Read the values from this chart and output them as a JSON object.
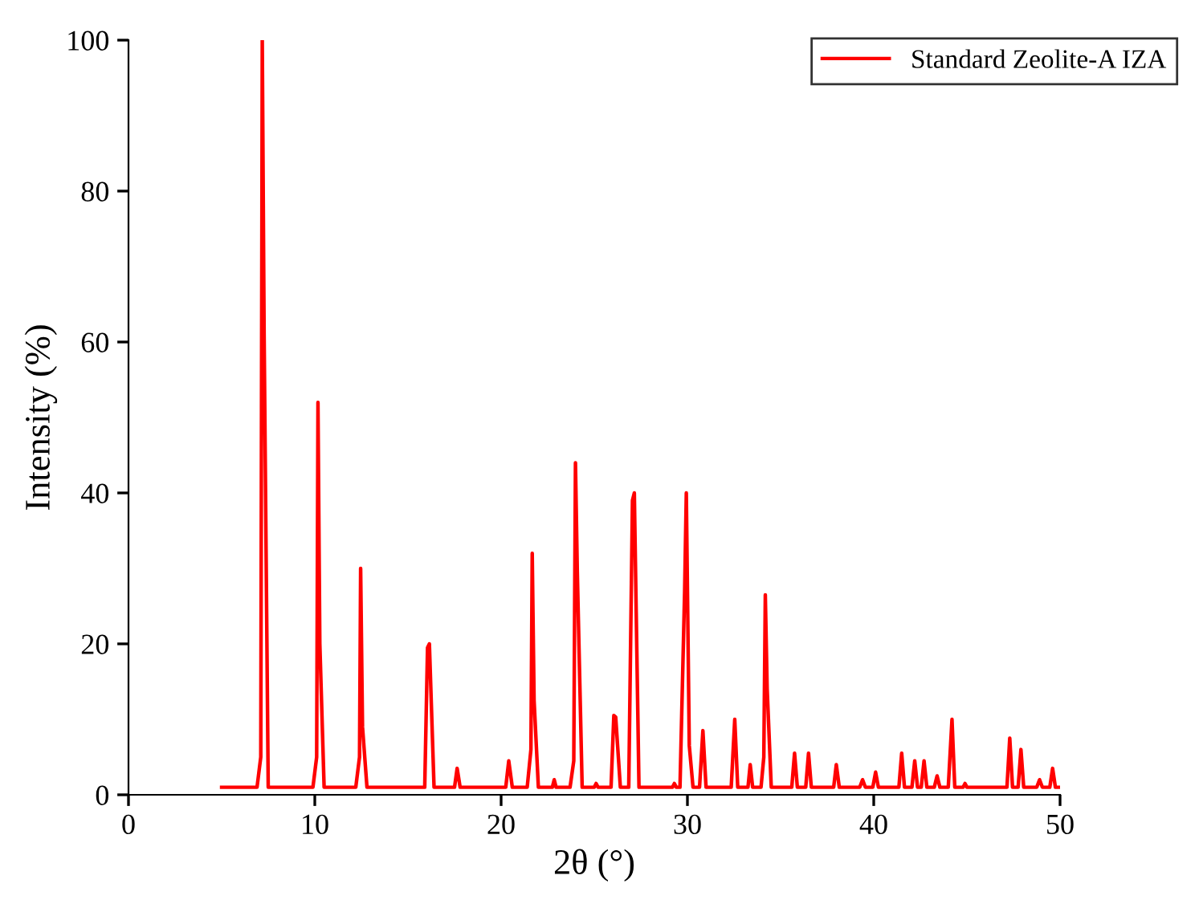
{
  "chart_data": {
    "type": "line",
    "xlabel": "2θ (°)",
    "ylabel": "Intensity (%)",
    "xlim": [
      0,
      50
    ],
    "ylim": [
      0,
      100
    ],
    "xticks": [
      0,
      10,
      20,
      30,
      40,
      50
    ],
    "yticks": [
      0,
      20,
      40,
      60,
      80,
      100
    ],
    "grid": false,
    "legend": "top right",
    "marker": "none",
    "line_style": "solid",
    "series": [
      {
        "name": "Standard Zeolite-A IZA",
        "color": "#ff0000",
        "x": [
          5,
          6.9,
          7.1,
          7.18,
          7.28,
          7.5,
          9.9,
          10.1,
          10.17,
          10.27,
          10.5,
          12.2,
          12.4,
          12.46,
          12.56,
          12.8,
          15.9,
          16.05,
          16.15,
          16.4,
          17.5,
          17.64,
          17.8,
          20.25,
          20.41,
          20.6,
          21.4,
          21.6,
          21.67,
          21.77,
          22.0,
          22.75,
          22.85,
          22.95,
          23.7,
          23.9,
          23.99,
          24.09,
          24.35,
          25.0,
          25.1,
          25.2,
          25.9,
          26.05,
          26.15,
          26.4,
          26.85,
          27.05,
          27.15,
          27.4,
          29.2,
          29.3,
          29.4,
          29.6,
          29.85,
          29.94,
          30.1,
          30.3,
          30.65,
          30.83,
          31.0,
          32.35,
          32.54,
          32.7,
          33.25,
          33.37,
          33.5,
          33.95,
          34.1,
          34.18,
          34.28,
          34.5,
          35.6,
          35.75,
          35.9,
          36.35,
          36.5,
          36.65,
          37.85,
          37.99,
          38.15,
          39.25,
          39.4,
          39.55,
          39.95,
          40.1,
          40.25,
          41.35,
          41.5,
          41.65,
          42.05,
          42.2,
          42.35,
          42.55,
          42.7,
          42.85,
          43.25,
          43.4,
          43.55,
          44.0,
          44.2,
          44.35,
          44.8,
          44.9,
          45.0,
          47.15,
          47.3,
          47.45,
          47.75,
          47.9,
          48.05,
          48.75,
          48.9,
          49.05,
          49.45,
          49.6,
          49.75,
          50
        ],
        "values": [
          1,
          1,
          5,
          100,
          61,
          1,
          1,
          5,
          52,
          20,
          1,
          1,
          5,
          30,
          9,
          1,
          1,
          19.5,
          20,
          1,
          1,
          3.5,
          1,
          1,
          4.5,
          1,
          1,
          6,
          32,
          12.5,
          1,
          1,
          2,
          1,
          1,
          4.5,
          44,
          29.5,
          1,
          1,
          1.5,
          1,
          1,
          10.5,
          10.3,
          1,
          1,
          39,
          40,
          1,
          1,
          1.5,
          1,
          1,
          27,
          40,
          6.5,
          1,
          1,
          8.5,
          1,
          1,
          10,
          1,
          1,
          4,
          1,
          1,
          5,
          26.5,
          14,
          1,
          1,
          5.5,
          1,
          1,
          5.5,
          1,
          1,
          4,
          1,
          1,
          2,
          1,
          1,
          3,
          1,
          1,
          5.5,
          1,
          1,
          4.5,
          1,
          1,
          4.5,
          1,
          1,
          2.5,
          1,
          1,
          10,
          1,
          1,
          1.5,
          1,
          1,
          7.5,
          1,
          1,
          6,
          1,
          1,
          2,
          1,
          1,
          3.5,
          1,
          1
        ]
      }
    ]
  }
}
